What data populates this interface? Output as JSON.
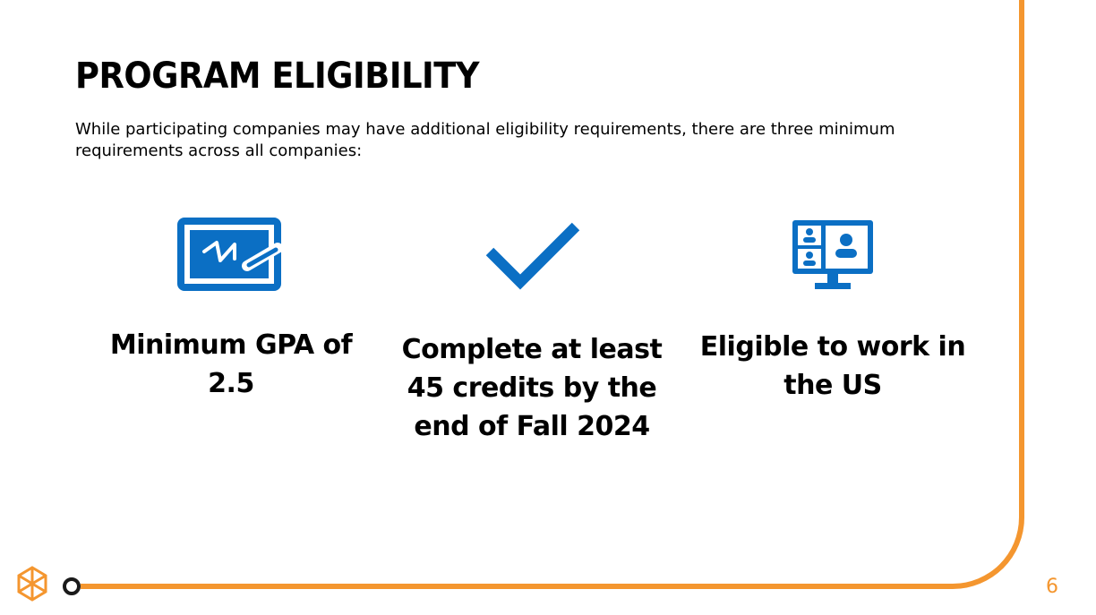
{
  "slide": {
    "title": "PROGRAM ELIGIBILITY",
    "intro": "While participating companies may have additional eligibility requirements, there are three minimum requirements across all companies:",
    "page_number": "6"
  },
  "requirements": [
    {
      "icon": "whiteboard-icon",
      "label": "Minimum GPA of 2.5"
    },
    {
      "icon": "checkmark-icon",
      "label": "Complete at least 45 credits by the end of Fall 2024"
    },
    {
      "icon": "video-conference-icon",
      "label": "Eligible to work in the US"
    }
  ],
  "colors": {
    "accent_orange": "#f4962f",
    "icon_blue": "#0b6fc4",
    "text_dark": "#000000"
  }
}
